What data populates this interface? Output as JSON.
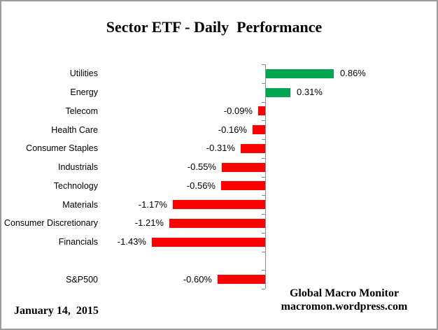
{
  "title": "Sector ETF - Daily  Performance",
  "footer": {
    "date": "January 14,  2015",
    "credit_line1": "Global Macro Monitor",
    "credit_line2": "macromon.wordpress.com"
  },
  "colors": {
    "positive_bar": "#00A651",
    "negative_bar": "#FF0000",
    "axis": "#8C8C8C",
    "frame_border": "#9B9B9B",
    "text": "#000000"
  },
  "chart_data": {
    "type": "bar",
    "orientation": "horizontal",
    "title": "Sector ETF - Daily  Performance",
    "categories": [
      "Utilities",
      "Energy",
      "Telecom",
      "Health Care",
      "Consumer Staples",
      "Industrials",
      "Technology",
      "Materials",
      "Consumer Discretionary",
      "Financials",
      "S&P500"
    ],
    "values": [
      0.86,
      0.31,
      -0.09,
      -0.16,
      -0.31,
      -0.55,
      -0.56,
      -1.17,
      -1.21,
      -1.43,
      -0.6
    ],
    "value_labels": [
      "0.86%",
      "0.31%",
      "-0.09%",
      "-0.16%",
      "-0.31%",
      "-0.55%",
      "-0.56%",
      "-1.17%",
      "-1.21%",
      "-1.43%",
      "-0.60%"
    ],
    "spacer_slots": [
      10
    ],
    "unit": "percent",
    "xlim": [
      -1.6,
      1.1
    ],
    "grid": false,
    "legend": false,
    "axis_baseline_at_zero": true
  }
}
